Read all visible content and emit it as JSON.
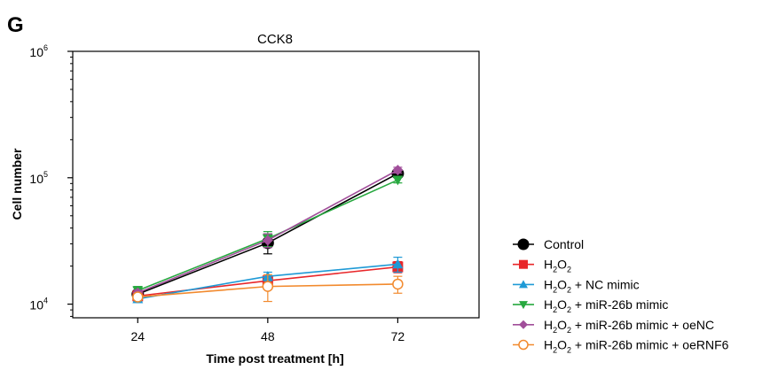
{
  "panel_label": "G",
  "chart_data": {
    "type": "line",
    "title": "CCK8",
    "xlabel": "Time post treatment [h]",
    "ylabel": "Cell number",
    "x": [
      24,
      48,
      72
    ],
    "x_tick_labels": [
      "24",
      "48",
      "72"
    ],
    "xlim": [
      12,
      87
    ],
    "y_scale": "log",
    "ylim": [
      7800,
      1000000
    ],
    "y_ticks": [
      {
        "value": 10000,
        "base": "10",
        "exponent": "4"
      },
      {
        "value": 100000,
        "base": "10",
        "exponent": "5"
      },
      {
        "value": 1000000,
        "base": "10",
        "exponent": "6"
      }
    ],
    "grid": false,
    "legend_position": "bottom-right, outside plot",
    "series": [
      {
        "name": "Control",
        "color": "#000000",
        "marker": "circle-filled",
        "values": [
          12000,
          30500,
          108000
        ],
        "errors": [
          600,
          5500,
          6000
        ]
      },
      {
        "name": "H2O2",
        "color": "#e8272a",
        "marker": "square-filled",
        "values": [
          11600,
          15300,
          19700
        ],
        "errors": [
          500,
          1000,
          2000
        ]
      },
      {
        "name": "H2O2 + NC mimic",
        "color": "#1f9ad6",
        "marker": "triangle-up",
        "values": [
          11000,
          16600,
          20700
        ],
        "errors": [
          500,
          1300,
          2800
        ]
      },
      {
        "name": "H2O2 + miR-26b mimic",
        "color": "#27a83f",
        "marker": "triangle-down",
        "values": [
          12800,
          33000,
          96000
        ],
        "errors": [
          1000,
          4500,
          5000
        ]
      },
      {
        "name": "H2O2 + miR-26b mimic + oeNC",
        "color": "#a14e9a",
        "marker": "diamond",
        "values": [
          12300,
          32000,
          115000
        ],
        "errors": [
          600,
          4000,
          6000
        ]
      },
      {
        "name": "H2O2 + miR-26b mimic + oeRNF6",
        "color": "#f28a2e",
        "marker": "circle-open",
        "values": [
          11400,
          13800,
          14400
        ],
        "errors": [
          500,
          3300,
          2200
        ]
      }
    ],
    "legend": [
      {
        "pre": "H",
        "sub1": "2",
        "mid": "O",
        "sub2": "2",
        "post": ""
      },
      {
        "pre": "H",
        "sub1": "2",
        "mid": "O",
        "sub2": "2",
        "post": ""
      },
      {
        "pre": "H",
        "sub1": "2",
        "mid": "O",
        "sub2": "2",
        "post": " + NC mimic"
      },
      {
        "pre": "H",
        "sub1": "2",
        "mid": "O",
        "sub2": "2",
        "post": " + miR-26b mimic"
      },
      {
        "pre": "H",
        "sub1": "2",
        "mid": "O",
        "sub2": "2",
        "post": " + miR-26b mimic + oeNC"
      },
      {
        "pre": "H",
        "sub1": "2",
        "mid": "O",
        "sub2": "2",
        "post": " + miR-26b mimic + oeRNF6"
      }
    ],
    "legend_plain": [
      "Control"
    ]
  }
}
